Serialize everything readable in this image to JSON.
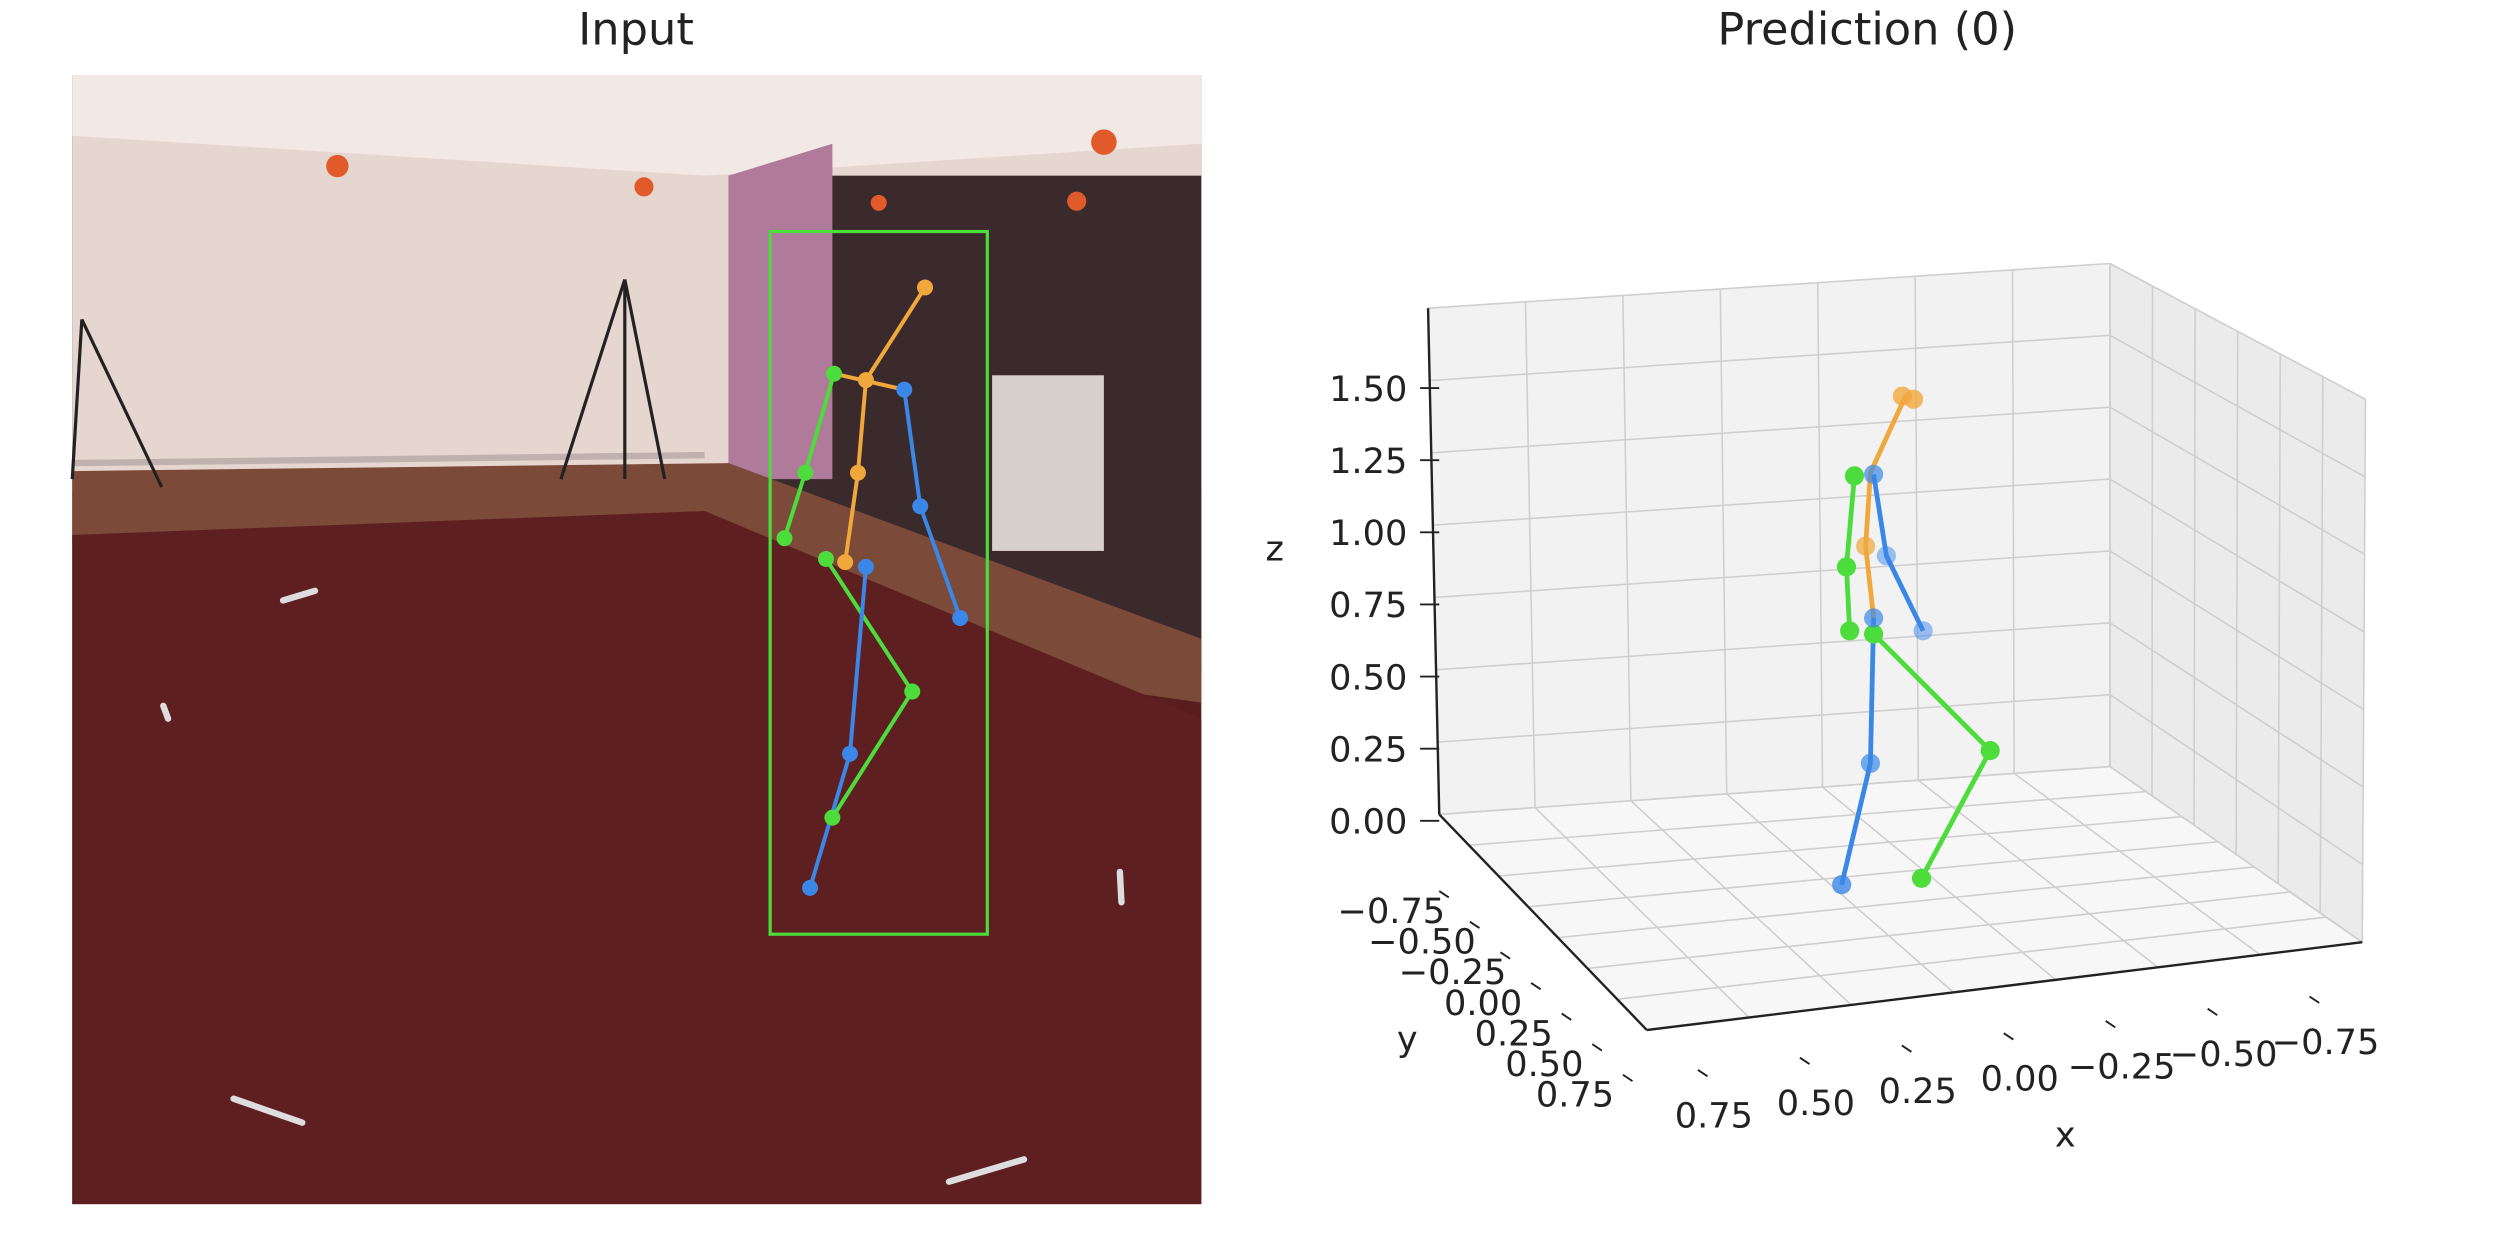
{
  "panels": [
    {
      "title": "Input"
    },
    {
      "title": "Prediction (0)",
      "axes": {
        "x": {
          "label": "x",
          "ticks": [
            {
              "value": 0.75,
              "label": "0.75"
            },
            {
              "value": 0.5,
              "label": "0.50"
            },
            {
              "value": 0.25,
              "label": "0.25"
            },
            {
              "value": 0,
              "label": "0.00"
            },
            {
              "value": -0.25,
              "label": "−0.25"
            },
            {
              "value": -0.5,
              "label": "−0.50"
            },
            {
              "value": -0.75,
              "label": "−0.75"
            }
          ]
        },
        "y": {
          "label": "y",
          "ticks": [
            {
              "value": -0.75,
              "label": "−0.75"
            },
            {
              "value": -0.5,
              "label": "−0.50"
            },
            {
              "value": -0.25,
              "label": "−0.25"
            },
            {
              "value": 0,
              "label": "0.00"
            },
            {
              "value": 0.25,
              "label": "0.25"
            },
            {
              "value": 0.5,
              "label": "0.50"
            },
            {
              "value": 0.75,
              "label": "0.75"
            }
          ]
        },
        "z": {
          "label": "z",
          "ticks": [
            {
              "value": 0,
              "label": "0.00"
            },
            {
              "value": 0.25,
              "label": "0.25"
            },
            {
              "value": 0.5,
              "label": "0.50"
            },
            {
              "value": 0.75,
              "label": "0.75"
            },
            {
              "value": 1,
              "label": "1.00"
            },
            {
              "value": 1.25,
              "label": "1.25"
            },
            {
              "value": 1.5,
              "label": "1.50"
            }
          ]
        }
      }
    }
  ]
}
